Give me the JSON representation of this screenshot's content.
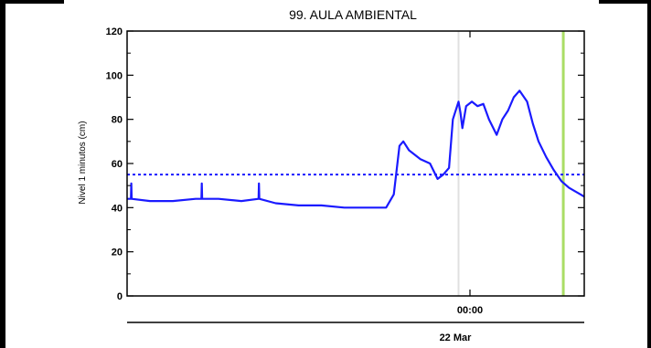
{
  "chart_data": {
    "type": "line",
    "title": "99. AULA AMBIENTAL",
    "xlabel": "",
    "ylabel": "Nivel 1 minutos (cm)",
    "ylim": [
      0,
      120
    ],
    "xlim": [
      "2024-03-21T09:00",
      "2024-03-22T05:00"
    ],
    "y_ticks": [
      0,
      20,
      40,
      60,
      80,
      100,
      120
    ],
    "x_ticks": [
      {
        "label": "00:00",
        "x": "2024-03-22T00:00"
      }
    ],
    "x_date_label": "22 Mar",
    "grid": false,
    "colors": {
      "series": "#1a1aff",
      "threshold": "#1a1aff",
      "current_marker": "#aadd66",
      "midnight_line": "#e0e0e0"
    },
    "series": [
      {
        "x": [
          "2024-03-21T09:00",
          "2024-03-21T09:10",
          "2024-03-21T09:11",
          "2024-03-21T09:12",
          "2024-03-21T10:00",
          "2024-03-21T11:00",
          "2024-03-21T12:00",
          "2024-03-21T12:15",
          "2024-03-21T12:16",
          "2024-03-21T12:17",
          "2024-03-21T13:00",
          "2024-03-21T14:00",
          "2024-03-21T14:45",
          "2024-03-21T14:46",
          "2024-03-21T14:47",
          "2024-03-21T15:30",
          "2024-03-21T16:30",
          "2024-03-21T17:30",
          "2024-03-21T18:30",
          "2024-03-21T19:30",
          "2024-03-21T20:20",
          "2024-03-21T20:40",
          "2024-03-21T20:55",
          "2024-03-21T21:05",
          "2024-03-21T21:20",
          "2024-03-21T21:50",
          "2024-03-21T22:15",
          "2024-03-21T22:35",
          "2024-03-21T22:50",
          "2024-03-21T23:05",
          "2024-03-21T23:15",
          "2024-03-21T23:30",
          "2024-03-21T23:35",
          "2024-03-21T23:40",
          "2024-03-21T23:50",
          "2024-03-22T00:05",
          "2024-03-22T00:20",
          "2024-03-22T00:35",
          "2024-03-22T00:50",
          "2024-03-22T01:10",
          "2024-03-22T01:25",
          "2024-03-22T01:40",
          "2024-03-22T01:55",
          "2024-03-22T02:10",
          "2024-03-22T02:30",
          "2024-03-22T02:45",
          "2024-03-22T03:00",
          "2024-03-22T03:20",
          "2024-03-22T03:40",
          "2024-03-22T04:00",
          "2024-03-22T04:20",
          "2024-03-22T04:40",
          "2024-03-22T05:00"
        ],
        "values": [
          44,
          44,
          51,
          44,
          43,
          43,
          44,
          44,
          51,
          44,
          44,
          43,
          44,
          51,
          44,
          42,
          41,
          41,
          40,
          40,
          40,
          46,
          68,
          70,
          66,
          62,
          60,
          53,
          55,
          58,
          80,
          88,
          83,
          76,
          86,
          88,
          86,
          87,
          80,
          73,
          80,
          84,
          90,
          93,
          88,
          78,
          70,
          63,
          57,
          52,
          49,
          47,
          45
        ]
      }
    ],
    "threshold": 55,
    "current_time_marker": "2024-03-22T04:05",
    "midnight_marker": "2024-03-21T23:30"
  }
}
